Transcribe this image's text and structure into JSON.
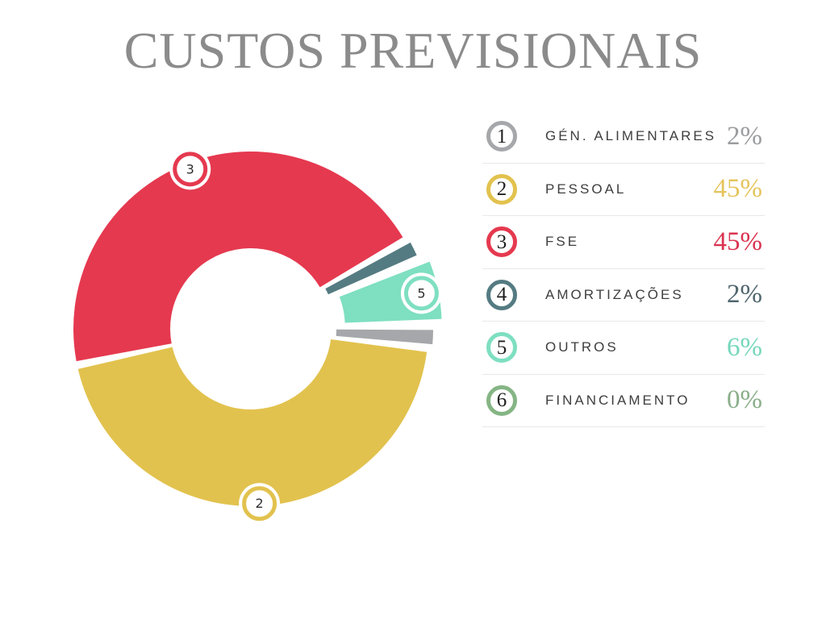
{
  "title": "CUSTOS PREVISIONAIS",
  "page": {
    "background": "#ffffff",
    "title_color": "#8b8b8b",
    "divider_color": "#e8e8e8",
    "label_color": "#3e3e3e",
    "circle_number_color": "#1e1e1e"
  },
  "chart_data": {
    "type": "pie",
    "subtype": "donut-exploded",
    "title": "CUSTOS PREVISIONAIS",
    "units": "%",
    "legend_position": "right",
    "start_angle_deg": 89,
    "clockwise": true,
    "pad_angle_deg": 1.3,
    "outer_radius_px": 220,
    "inner_radius_px": 100,
    "categories": [
      "GÉN. ALIMENTARES",
      "PESSOAL",
      "FSE",
      "AMORTIZAÇÕES",
      "OUTROS",
      "FINANCIAMENTO"
    ],
    "values": [
      2,
      45,
      45,
      2,
      6,
      0
    ],
    "items": [
      {
        "n": "1",
        "label": "GÉN. ALIMENTARES",
        "value": 2,
        "display": "2%",
        "color": "#a5a7aa",
        "value_color": "#9b9c9e",
        "explode": 6,
        "badge_radius": null
      },
      {
        "n": "2",
        "label": "PESSOAL",
        "value": 45,
        "display": "45%",
        "color": "#e2c24e",
        "value_color": "#e5c45c",
        "explode": 0,
        "badge_radius": 217
      },
      {
        "n": "3",
        "label": "FSE",
        "value": 45,
        "display": "45%",
        "color": "#e5394f",
        "value_color": "#d93350",
        "explode": 0,
        "badge_radius": 212
      },
      {
        "n": "4",
        "label": "AMORTIZAÇÕES",
        "value": 2,
        "display": "2%",
        "color": "#557b82",
        "value_color": "#50666e",
        "explode": 5,
        "badge_radius": null
      },
      {
        "n": "5",
        "label": "OUTROS",
        "value": 6,
        "display": "6%",
        "color": "#7edfc1",
        "value_color": "#75d7bb",
        "explode": 17,
        "badge_radius": 216
      },
      {
        "n": "6",
        "label": "FINANCIAMENTO",
        "value": 0,
        "display": "0%",
        "color": "#85b585",
        "value_color": "#8aae8a",
        "explode": 0,
        "badge_radius": null
      }
    ]
  }
}
